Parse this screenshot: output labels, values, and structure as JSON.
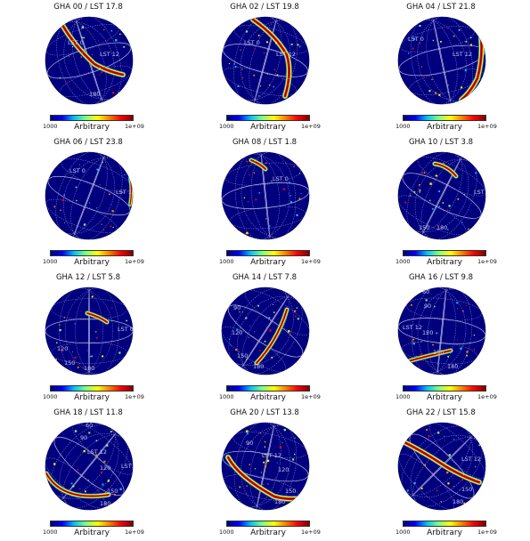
{
  "colors": {
    "background": "#00007f",
    "colormap": [
      "#00007f",
      "#0000ff",
      "#00bfff",
      "#7fff7f",
      "#ffff00",
      "#ff7f00",
      "#ff0000",
      "#7f0000"
    ]
  },
  "chart_data": [
    {
      "type": "heatmap",
      "title": "GHA 00 / LST 17.8",
      "colorbar": {
        "min_label": "1000",
        "max_label": "1e+09",
        "label": "Arbitrary"
      },
      "grid_labels": [
        "LST 0",
        "LST 12",
        "180"
      ],
      "grid": true
    },
    {
      "type": "heatmap",
      "title": "GHA 02 / LST 19.8",
      "colorbar": {
        "min_label": "1000",
        "max_label": "1e+09",
        "label": "Arbitrary"
      },
      "grid_labels": [
        "LST 0",
        "LST 12"
      ],
      "grid": true
    },
    {
      "type": "heatmap",
      "title": "GHA 04 / LST 21.8",
      "colorbar": {
        "min_label": "1000",
        "max_label": "1e+09",
        "label": "Arbitrary"
      },
      "grid_labels": [
        "LST 0",
        "LST 12"
      ],
      "grid": true
    },
    {
      "type": "heatmap",
      "title": "GHA 06 / LST 23.8",
      "colorbar": {
        "min_label": "1000",
        "max_label": "1e+09",
        "label": "Arbitrary"
      },
      "grid_labels": [
        "LST 0",
        "LST 18"
      ],
      "grid": true
    },
    {
      "type": "heatmap",
      "title": "GHA 08 / LST 1.8",
      "colorbar": {
        "min_label": "1000",
        "max_label": "1e+09",
        "label": "Arbitrary"
      },
      "grid_labels": [
        "LST 0"
      ],
      "grid": true
    },
    {
      "type": "heatmap",
      "title": "GHA 10 / LST 3.8",
      "colorbar": {
        "min_label": "1000",
        "max_label": "1e+09",
        "label": "Arbitrary"
      },
      "grid_labels": [
        "LST 0",
        "150",
        "180"
      ],
      "grid": true
    },
    {
      "type": "heatmap",
      "title": "GHA 12 / LST 5.8",
      "colorbar": {
        "min_label": "1000",
        "max_label": "1e+09",
        "label": "Arbitrary"
      },
      "grid_labels": [
        "LST 0",
        "120",
        "150",
        "180"
      ],
      "grid": true
    },
    {
      "type": "heatmap",
      "title": "GHA 14 / LST 7.8",
      "colorbar": {
        "min_label": "1000",
        "max_label": "1e+09",
        "label": "Arbitrary"
      },
      "grid_labels": [
        "90",
        "120",
        "150",
        "180"
      ],
      "grid": true
    },
    {
      "type": "heatmap",
      "title": "GHA 16 / LST 9.8",
      "colorbar": {
        "min_label": "1000",
        "max_label": "1e+09",
        "label": "Arbitrary"
      },
      "grid_labels": [
        "60",
        "90",
        "LST 12",
        "120",
        "150",
        "180"
      ],
      "grid": true
    },
    {
      "type": "heatmap",
      "title": "GHA 18 / LST 11.8",
      "colorbar": {
        "min_label": "1000",
        "max_label": "1e+09",
        "label": "Arbitrary"
      },
      "grid_labels": [
        "60",
        "90",
        "LST 12",
        "120",
        "LST 1",
        "150",
        "180"
      ],
      "grid": true
    },
    {
      "type": "heatmap",
      "title": "GHA 20 / LST 13.8",
      "colorbar": {
        "min_label": "1000",
        "max_label": "1e+09",
        "label": "Arbitrary"
      },
      "grid_labels": [
        "90",
        "LST 12",
        "120",
        "150",
        "180"
      ],
      "grid": true
    },
    {
      "type": "heatmap",
      "title": "GHA 22 / LST 15.8",
      "colorbar": {
        "min_label": "1000",
        "max_label": "1e+09",
        "label": "Arbitrary"
      },
      "grid_labels": [
        "LST 12",
        "150",
        "180"
      ],
      "grid": true
    }
  ]
}
